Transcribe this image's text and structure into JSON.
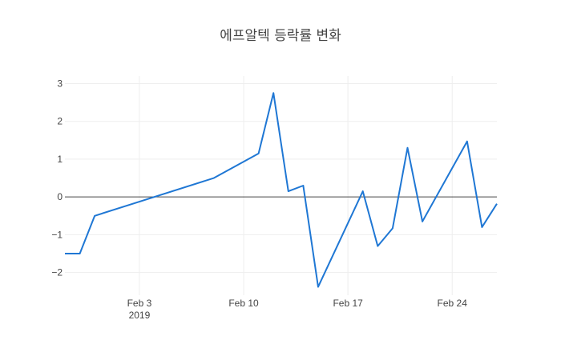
{
  "chart_data": {
    "type": "line",
    "title": "에프알텍 등락률 변화",
    "xlabel": "",
    "ylabel": "",
    "x": [
      "2019-01-29",
      "2019-01-30",
      "2019-01-31",
      "2019-02-08",
      "2019-02-11",
      "2019-02-12",
      "2019-02-13",
      "2019-02-14",
      "2019-02-15",
      "2019-02-18",
      "2019-02-19",
      "2019-02-20",
      "2019-02-21",
      "2019-02-22",
      "2019-02-25",
      "2019-02-26",
      "2019-02-27"
    ],
    "series": [
      {
        "values": [
          -1.5,
          -1.5,
          -0.5,
          0.5,
          1.15,
          2.75,
          0.15,
          0.3,
          -2.38,
          0.15,
          -1.3,
          -0.83,
          1.3,
          -0.65,
          1.47,
          -0.8,
          -0.18
        ],
        "color": "#1f77d4"
      }
    ],
    "xlim": [
      "2019-01-29",
      "2019-02-27"
    ],
    "ylim": [
      -2.6,
      3.2
    ],
    "x_ticks": [
      {
        "date": "2019-02-03",
        "label": "Feb 3",
        "sublabel": "2019"
      },
      {
        "date": "2019-02-10",
        "label": "Feb 10",
        "sublabel": ""
      },
      {
        "date": "2019-02-17",
        "label": "Feb 17",
        "sublabel": ""
      },
      {
        "date": "2019-02-24",
        "label": "Feb 24",
        "sublabel": ""
      }
    ],
    "y_ticks": [
      {
        "value": 3,
        "label": "3"
      },
      {
        "value": 2,
        "label": "2"
      },
      {
        "value": 1,
        "label": "1"
      },
      {
        "value": 0,
        "label": "0"
      },
      {
        "value": -1,
        "label": "−1"
      },
      {
        "value": -2,
        "label": "−2"
      }
    ],
    "grid": true,
    "legend": "none"
  }
}
